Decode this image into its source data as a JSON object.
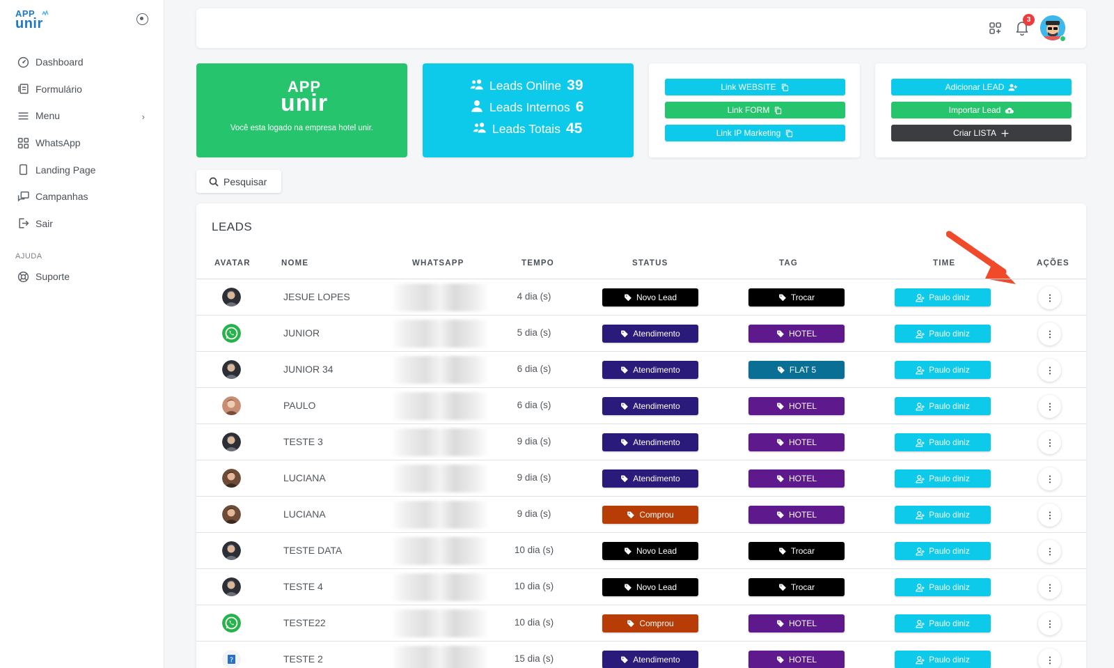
{
  "brand": {
    "logo_top": "APP",
    "logo_bottom": "unir",
    "accent": "#1f79c9"
  },
  "sidebar": {
    "items": [
      {
        "label": "Dashboard",
        "icon": "dashboard-icon"
      },
      {
        "label": "Formulário",
        "icon": "form-icon"
      },
      {
        "label": "Menu",
        "icon": "menu-icon",
        "has_submenu": true
      },
      {
        "label": "WhatsApp",
        "icon": "grid-icon"
      },
      {
        "label": "Landing Page",
        "icon": "page-icon"
      },
      {
        "label": "Campanhas",
        "icon": "chat-icon"
      },
      {
        "label": "Sair",
        "icon": "logout-icon"
      }
    ],
    "section_label": "AJUDA",
    "help_items": [
      {
        "label": "Suporte",
        "icon": "lifebuoy-icon"
      }
    ]
  },
  "topbar": {
    "notification_count": "3"
  },
  "cards": {
    "company": {
      "logo_top": "APP",
      "logo_bottom": "unir",
      "message": "Você esta logado na empresa hotel unir."
    },
    "stats": [
      {
        "label": "Leads Online",
        "value": "39"
      },
      {
        "label": "Leads Internos",
        "value": "6"
      },
      {
        "label": "Leads Totais",
        "value": "45"
      }
    ],
    "links": [
      {
        "label": "Link WEBSITE",
        "color": "#0dc9ea"
      },
      {
        "label": "Link FORM",
        "color": "#26c46c"
      },
      {
        "label": "Link IP Marketing",
        "color": "#0dc9ea"
      }
    ],
    "actions": [
      {
        "label": "Adicionar LEAD",
        "color": "#0dc9ea"
      },
      {
        "label": "Importar Lead",
        "color": "#26c46c"
      },
      {
        "label": "Criar LISTA",
        "color": "#3b3d40"
      }
    ]
  },
  "search": {
    "label": "Pesquisar"
  },
  "leads": {
    "title": "LEADS",
    "columns": [
      "AVATAR",
      "NOME",
      "WHATSAPP",
      "TEMPO",
      "STATUS",
      "TAG",
      "TIME",
      "AÇÕES"
    ],
    "status_colors": {
      "Novo Lead": "#000000",
      "Atendimento": "#2a1a7a",
      "Comprou": "#b83c06"
    },
    "tag_colors": {
      "Trocar": "#000000",
      "HOTEL": "#5e1a8c",
      "FLAT 5": "#0a6f94"
    },
    "team_color": "#0dc9ea",
    "rows": [
      {
        "avatar": "photo-dark",
        "name": "JESUE LOPES",
        "tempo": "4 dia (s)",
        "status": "Novo Lead",
        "tag": "Trocar",
        "team": "Paulo diniz"
      },
      {
        "avatar": "whatsapp",
        "name": "JUNIOR",
        "tempo": "5 dia (s)",
        "status": "Atendimento",
        "tag": "HOTEL",
        "team": "Paulo diniz"
      },
      {
        "avatar": "photo-dark",
        "name": "JUNIOR 34",
        "tempo": "6 dia (s)",
        "status": "Atendimento",
        "tag": "FLAT 5",
        "team": "Paulo diniz"
      },
      {
        "avatar": "photo-light",
        "name": "PAULO",
        "tempo": "6 dia (s)",
        "status": "Atendimento",
        "tag": "HOTEL",
        "team": "Paulo diniz"
      },
      {
        "avatar": "photo-dark",
        "name": "TESTE 3",
        "tempo": "9 dia (s)",
        "status": "Atendimento",
        "tag": "HOTEL",
        "team": "Paulo diniz"
      },
      {
        "avatar": "photo-brown",
        "name": "LUCIANA",
        "tempo": "9 dia (s)",
        "status": "Atendimento",
        "tag": "HOTEL",
        "team": "Paulo diniz"
      },
      {
        "avatar": "photo-brown",
        "name": "LUCIANA",
        "tempo": "9 dia (s)",
        "status": "Comprou",
        "tag": "HOTEL",
        "team": "Paulo diniz"
      },
      {
        "avatar": "photo-dark",
        "name": "TESTE DATA",
        "tempo": "10 dia (s)",
        "status": "Novo Lead",
        "tag": "Trocar",
        "team": "Paulo diniz"
      },
      {
        "avatar": "photo-dark",
        "name": "TESTE 4",
        "tempo": "10 dia (s)",
        "status": "Novo Lead",
        "tag": "Trocar",
        "team": "Paulo diniz"
      },
      {
        "avatar": "whatsapp",
        "name": "TESTE22",
        "tempo": "10 dia (s)",
        "status": "Comprou",
        "tag": "HOTEL",
        "team": "Paulo diniz"
      },
      {
        "avatar": "question",
        "name": "TESTE 2",
        "tempo": "15 dia (s)",
        "status": "Atendimento",
        "tag": "HOTEL",
        "team": "Paulo diniz"
      }
    ]
  }
}
